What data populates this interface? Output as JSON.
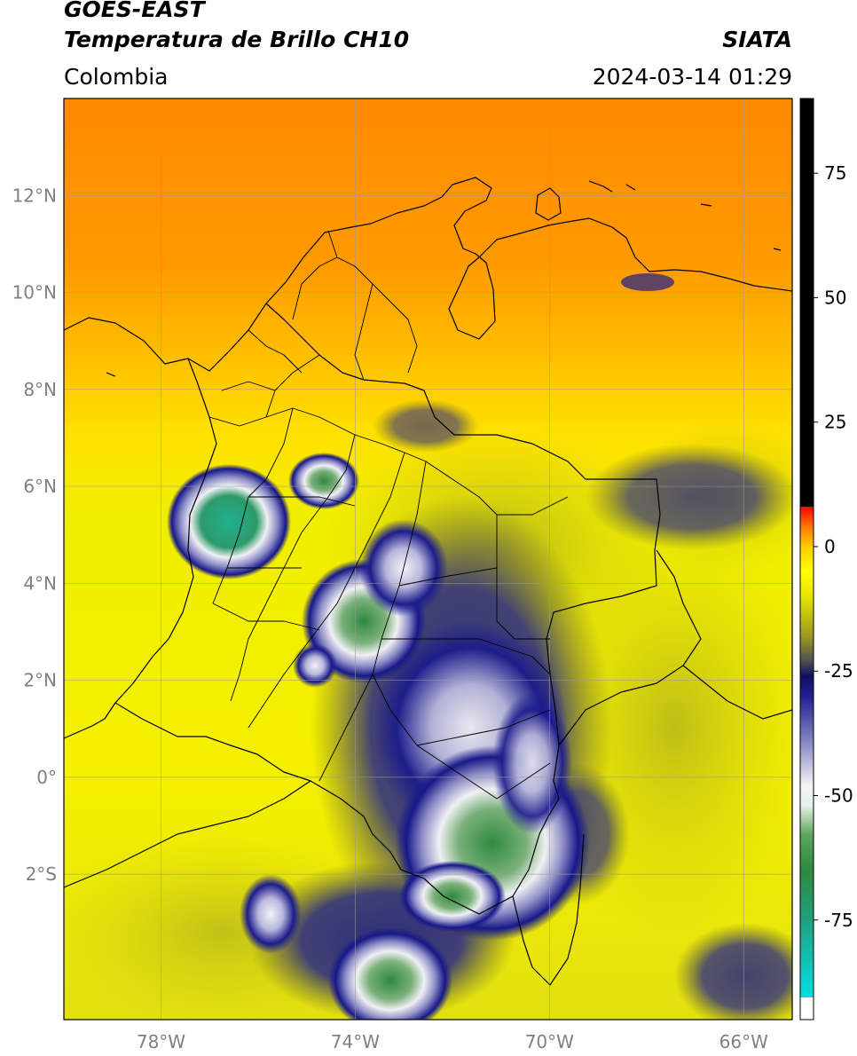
{
  "header": {
    "satellite": "GOES-EAST",
    "product": "Temperatura de Brillo CH10",
    "region": "Colombia",
    "agency": "SIATA",
    "datetime": "2024-03-14 01:29"
  },
  "map": {
    "extent": {
      "lon_min": -80,
      "lon_max": -65,
      "lat_min": -5,
      "lat_max": 14
    },
    "lat_ticks": [
      {
        "value": 12,
        "label": "12°N"
      },
      {
        "value": 10,
        "label": "10°N"
      },
      {
        "value": 8,
        "label": "8°N"
      },
      {
        "value": 6,
        "label": "6°N"
      },
      {
        "value": 4,
        "label": "4°N"
      },
      {
        "value": 2,
        "label": "2°N"
      },
      {
        "value": 0,
        "label": "0°"
      },
      {
        "value": -2,
        "label": "2°S"
      }
    ],
    "lon_ticks": [
      {
        "value": -78,
        "label": "78°W"
      },
      {
        "value": -74,
        "label": "74°W"
      },
      {
        "value": -70,
        "label": "70°W"
      },
      {
        "value": -66,
        "label": "66°W"
      }
    ],
    "grid": true
  },
  "colorbar": {
    "range": [
      -95,
      90
    ],
    "ticks": [
      {
        "value": 75,
        "label": "75"
      },
      {
        "value": 50,
        "label": "50"
      },
      {
        "value": 25,
        "label": "25"
      },
      {
        "value": 0,
        "label": "0"
      },
      {
        "value": -25,
        "label": "-25"
      },
      {
        "value": -50,
        "label": "-50"
      },
      {
        "value": -75,
        "label": "-75"
      }
    ],
    "stops": [
      {
        "value": -95,
        "color": "#ffffff"
      },
      {
        "value": -90.5,
        "color": "#ffffff"
      },
      {
        "value": -90.5,
        "color": "#00e0e0"
      },
      {
        "value": -85,
        "color": "#10c8c0"
      },
      {
        "value": -75,
        "color": "#20a080"
      },
      {
        "value": -65,
        "color": "#2e8a3e"
      },
      {
        "value": -58,
        "color": "#5aa65a"
      },
      {
        "value": -52,
        "color": "#e8f0e8"
      },
      {
        "value": -48,
        "color": "#f4f4f8"
      },
      {
        "value": -40,
        "color": "#9090c8"
      },
      {
        "value": -30,
        "color": "#202090"
      },
      {
        "value": -26,
        "color": "#101060"
      },
      {
        "value": -23,
        "color": "#505050"
      },
      {
        "value": -18,
        "color": "#9a9a20"
      },
      {
        "value": -10,
        "color": "#e6e600"
      },
      {
        "value": -5,
        "color": "#ffff00"
      },
      {
        "value": 0,
        "color": "#ffcc00"
      },
      {
        "value": 4,
        "color": "#ff7700"
      },
      {
        "value": 8,
        "color": "#ff0000"
      },
      {
        "value": 8,
        "color": "#000000"
      },
      {
        "value": 90,
        "color": "#000000"
      }
    ]
  }
}
